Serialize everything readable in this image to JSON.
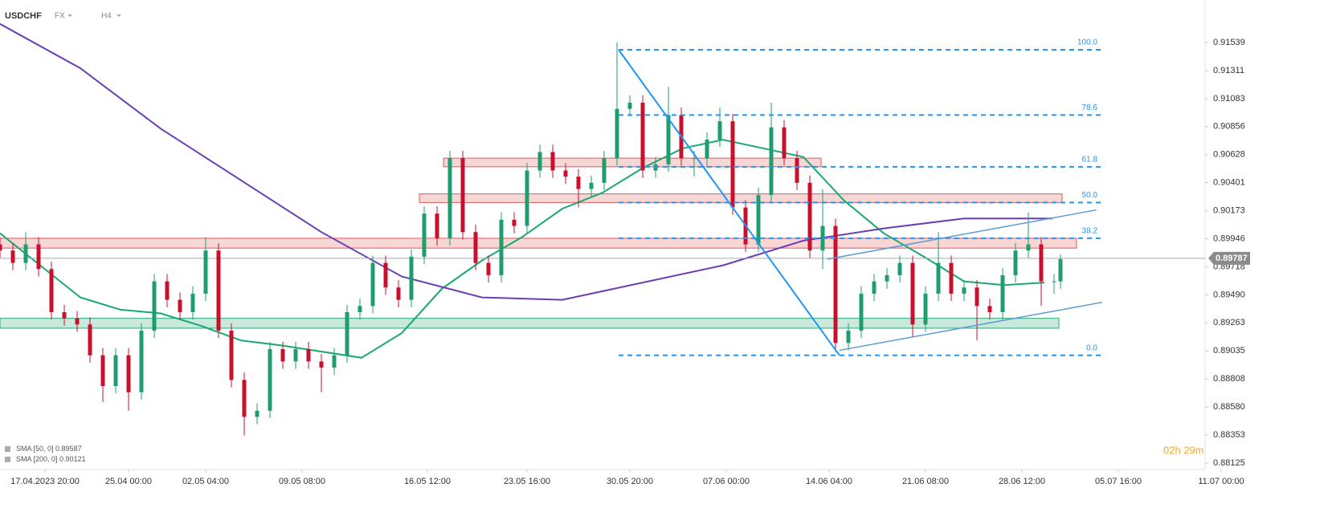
{
  "header": {
    "symbol": "USDCHF",
    "market": "FX",
    "timeframe": "H4",
    "timer": "02h 29m"
  },
  "chart_data": {
    "type": "candlestick",
    "up_color": "#1f9d6f",
    "down_color": "#c8102e",
    "x": [
      0,
      2,
      4,
      6,
      8,
      10,
      12,
      14,
      16,
      18,
      20,
      22,
      24,
      26,
      28,
      30,
      32,
      34,
      36,
      38,
      40,
      42,
      44,
      46,
      48,
      50,
      52,
      54,
      56,
      58,
      60,
      62,
      64,
      66,
      68,
      70,
      72,
      74,
      76,
      78,
      80,
      82,
      84,
      86,
      88,
      90,
      92,
      94,
      96,
      98,
      100,
      102,
      104,
      106,
      108,
      110,
      112,
      114,
      116,
      118,
      120,
      122,
      124,
      126,
      128,
      130,
      132,
      134,
      136,
      138,
      140,
      142,
      144,
      146,
      148,
      150,
      152,
      154,
      156,
      158,
      160,
      162,
      164,
      165
    ],
    "open": [
      0.899,
      0.8985,
      0.8975,
      0.899,
      0.897,
      0.8935,
      0.893,
      0.8925,
      0.89,
      0.8875,
      0.89,
      0.887,
      0.892,
      0.896,
      0.8945,
      0.8935,
      0.895,
      0.8985,
      0.892,
      0.888,
      0.885,
      0.8855,
      0.8905,
      0.8895,
      0.8905,
      0.8895,
      0.889,
      0.89,
      0.8935,
      0.894,
      0.8975,
      0.8955,
      0.8945,
      0.898,
      0.9015,
      0.8995,
      0.906,
      0.9,
      0.8975,
      0.8965,
      0.901,
      0.9005,
      0.905,
      0.9065,
      0.905,
      0.9045,
      0.9035,
      0.904,
      0.906,
      0.91,
      0.9105,
      0.905,
      0.9055,
      0.9095,
      0.906,
      0.906,
      0.9075,
      0.909,
      0.902,
      0.899,
      0.903,
      0.9085,
      0.906,
      0.904,
      0.8985,
      0.9005,
      0.891,
      0.892,
      0.895,
      0.896,
      0.8965,
      0.8975,
      0.8925,
      0.895,
      0.8975,
      0.895,
      0.8955,
      0.894,
      0.8935,
      0.8965,
      0.8985,
      0.899,
      0.896,
      0.896
    ],
    "high": [
      0.8996,
      0.8991,
      0.9,
      0.8996,
      0.8976,
      0.8941,
      0.8936,
      0.8931,
      0.8906,
      0.8906,
      0.8906,
      0.8926,
      0.8966,
      0.8966,
      0.8951,
      0.8956,
      0.8996,
      0.8991,
      0.8926,
      0.8886,
      0.8861,
      0.8911,
      0.8911,
      0.8911,
      0.8911,
      0.8901,
      0.8906,
      0.8941,
      0.8946,
      0.8981,
      0.8981,
      0.8961,
      0.8986,
      0.9021,
      0.9021,
      0.9066,
      0.9066,
      0.9006,
      0.8981,
      0.9016,
      0.9016,
      0.9056,
      0.9071,
      0.9071,
      0.9056,
      0.9051,
      0.9046,
      0.9066,
      0.9154,
      0.9111,
      0.9111,
      0.9061,
      0.9118,
      0.9101,
      0.9066,
      0.9081,
      0.9101,
      0.9096,
      0.9026,
      0.9036,
      0.9105,
      0.9091,
      0.9066,
      0.9046,
      0.9035,
      0.9011,
      0.8926,
      0.8956,
      0.8966,
      0.8971,
      0.8981,
      0.8981,
      0.8956,
      0.9,
      0.8981,
      0.8961,
      0.8961,
      0.8946,
      0.8971,
      0.8991,
      0.9016,
      0.8996,
      0.8966,
      0.8982
    ],
    "low": [
      0.8979,
      0.8969,
      0.8969,
      0.8964,
      0.8929,
      0.8924,
      0.8919,
      0.8894,
      0.8862,
      0.8869,
      0.8855,
      0.8864,
      0.8914,
      0.8939,
      0.8929,
      0.8929,
      0.8944,
      0.8914,
      0.8874,
      0.8835,
      0.8844,
      0.8849,
      0.8889,
      0.8889,
      0.8889,
      0.887,
      0.8884,
      0.8894,
      0.8929,
      0.8934,
      0.8949,
      0.8939,
      0.8939,
      0.8974,
      0.8989,
      0.8989,
      0.8994,
      0.8969,
      0.8959,
      0.8959,
      0.8999,
      0.8999,
      0.9044,
      0.9044,
      0.9039,
      0.902,
      0.9029,
      0.9034,
      0.9054,
      0.9094,
      0.9044,
      0.9044,
      0.9049,
      0.9054,
      0.9045,
      0.9054,
      0.9069,
      0.9014,
      0.8984,
      0.8984,
      0.9024,
      0.9054,
      0.9034,
      0.8979,
      0.897,
      0.8903,
      0.8904,
      0.8914,
      0.8944,
      0.8954,
      0.8959,
      0.8915,
      0.8919,
      0.8944,
      0.8944,
      0.8944,
      0.8912,
      0.8929,
      0.8929,
      0.8959,
      0.8979,
      0.894,
      0.895,
      0.8954
    ],
    "close": [
      0.8985,
      0.8975,
      0.899,
      0.897,
      0.8935,
      0.893,
      0.8925,
      0.89,
      0.8875,
      0.89,
      0.887,
      0.892,
      0.896,
      0.8945,
      0.8935,
      0.895,
      0.8985,
      0.892,
      0.888,
      0.885,
      0.8855,
      0.8905,
      0.8895,
      0.8905,
      0.8895,
      0.889,
      0.89,
      0.8935,
      0.894,
      0.8975,
      0.8955,
      0.8945,
      0.898,
      0.9015,
      0.8995,
      0.906,
      0.9,
      0.8975,
      0.8965,
      0.901,
      0.9005,
      0.905,
      0.9065,
      0.905,
      0.9045,
      0.9035,
      0.904,
      0.906,
      0.91,
      0.9105,
      0.905,
      0.9055,
      0.9095,
      0.906,
      0.906,
      0.9075,
      0.909,
      0.902,
      0.899,
      0.903,
      0.9085,
      0.906,
      0.904,
      0.8985,
      0.9005,
      0.891,
      0.892,
      0.895,
      0.896,
      0.8965,
      0.8975,
      0.8925,
      0.895,
      0.8975,
      0.895,
      0.8955,
      0.894,
      0.8935,
      0.8965,
      0.8985,
      0.899,
      0.896,
      0.896,
      0.8978
    ],
    "overlays": [
      {
        "name": "SMA [50, 0]",
        "last": 0.89587,
        "color": "#1aa872",
        "x": [
          0,
          6.25,
          12.5,
          18.75,
          25,
          31.25,
          37.5,
          43.75,
          50,
          56.25,
          62.5,
          68.75,
          75,
          81.25,
          87.5,
          93.75,
          100,
          106.25,
          112.5,
          118.75,
          125,
          131.25,
          137.5,
          143.75,
          150,
          156.25,
          162.5
        ],
        "values": [
          0.8999,
          0.8973,
          0.8947,
          0.8937,
          0.8934,
          0.8924,
          0.8912,
          0.8908,
          0.8903,
          0.8898,
          0.8918,
          0.8954,
          0.8977,
          0.8996,
          0.9019,
          0.9032,
          0.9052,
          0.9068,
          0.9075,
          0.9068,
          0.9061,
          0.9026,
          0.8999,
          0.898,
          0.896,
          0.8957,
          0.8959
        ]
      },
      {
        "name": "SMA [200, 0]",
        "last": 0.90121,
        "color": "#6a3fb5",
        "x": [
          0,
          12.5,
          25,
          37.5,
          50,
          62.5,
          75,
          87.5,
          100,
          112.5,
          125,
          137.5,
          150,
          163.75
        ],
        "values": [
          0.9169,
          0.9133,
          0.9084,
          0.9042,
          0.9,
          0.8964,
          0.8947,
          0.8945,
          0.8959,
          0.8973,
          0.8993,
          0.9003,
          0.9011,
          0.9011
        ]
      }
    ],
    "zones": [
      {
        "x": [
          69,
          127.75
        ],
        "y": [
          0.9053,
          0.906
        ],
        "color": "#e05a5a"
      },
      {
        "x": [
          65.25,
          165.25
        ],
        "y": [
          0.9024,
          0.9031
        ],
        "color": "#e05a5a"
      },
      {
        "x": [
          0,
          167.5
        ],
        "y": [
          0.8987,
          0.8995
        ],
        "color": "#e05a5a"
      },
      {
        "x": [
          0,
          164.75
        ],
        "y": [
          0.8922,
          0.893
        ],
        "color": "#2aa876"
      }
    ],
    "fib": {
      "color": "#2196f3",
      "x": [
        96.25,
        171.25
      ],
      "levels": [
        {
          "label": "100.0",
          "price": 0.9148
        },
        {
          "label": "78.6",
          "price": 0.9095
        },
        {
          "label": "61.8",
          "price": 0.9053
        },
        {
          "label": "50.0",
          "price": 0.9024
        },
        {
          "label": "38.2",
          "price": 0.8995
        },
        {
          "label": "0.0",
          "price": 0.89
        }
      ]
    },
    "trendlines": [
      {
        "x": [
          96.25,
          130.6
        ],
        "y": [
          0.9148,
          0.89
        ],
        "color": "#2196f3"
      },
      {
        "x": [
          130.6,
          171.5
        ],
        "y": [
          0.8904,
          0.8943
        ],
        "color": "#5b9bd5"
      },
      {
        "x": [
          128.75,
          170.6
        ],
        "y": [
          0.8978,
          0.9018
        ],
        "color": "#5b9bd5"
      }
    ],
    "last_price": 0.89787,
    "xlim": [
      0,
      192.5
    ],
    "ylim": [
      0.88073,
      0.91884
    ],
    "xticks": [
      {
        "value": 7,
        "label": "17.04.2023 20:00"
      },
      {
        "value": 20,
        "label": "25.04 00:00"
      },
      {
        "value": 32,
        "label": "02.05 04:00"
      },
      {
        "value": 47,
        "label": "09.05 08:00"
      },
      {
        "value": 66.5,
        "label": "16.05 12:00"
      },
      {
        "value": 82,
        "label": "23.05 16:00"
      },
      {
        "value": 98,
        "label": "30.05 20:00"
      },
      {
        "value": 113,
        "label": "07.06 00:00"
      },
      {
        "value": 129,
        "label": "14.06 04:00"
      },
      {
        "value": 144,
        "label": "21.06 08:00"
      },
      {
        "value": 159,
        "label": "28.06 12:00"
      },
      {
        "value": 174,
        "label": "05.07 16:00"
      },
      {
        "value": 190,
        "label": "11.07 00:00"
      }
    ],
    "yticks": [
      0.91539,
      0.91311,
      0.91083,
      0.90856,
      0.90628,
      0.90401,
      0.90173,
      0.89946,
      0.89718,
      {
        "value": 0.8949,
        "label": "0.89490"
      },
      0.89263,
      0.89035,
      0.88808,
      {
        "value": 0.8858,
        "label": "0.88580"
      },
      0.88353,
      0.88125
    ]
  }
}
